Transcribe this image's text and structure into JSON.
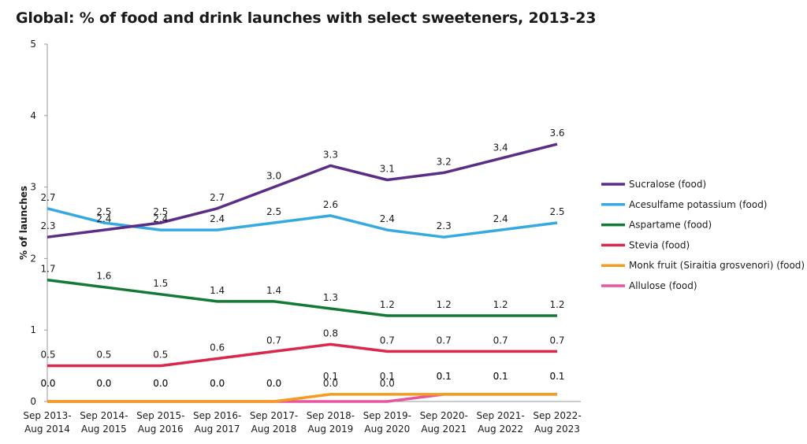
{
  "title": "Global: % of food and drink launches with select sweeteners, 2013-23",
  "chart_data": {
    "type": "line",
    "title": "Global: % of food and drink launches with select sweeteners, 2013-23",
    "ylabel": "% of launches",
    "xlabel": "",
    "ylim": [
      0,
      5
    ],
    "yticks": [
      0,
      1,
      2,
      3,
      4,
      5
    ],
    "grid": false,
    "legend_position": "right",
    "categories": [
      [
        "Sep 2013-",
        "Aug 2014"
      ],
      [
        "Sep 2014-",
        "Aug 2015"
      ],
      [
        "Sep 2015-",
        "Aug 2016"
      ],
      [
        "Sep 2016-",
        "Aug 2017"
      ],
      [
        "Sep 2017-",
        "Aug 2018"
      ],
      [
        "Sep 2018-",
        "Aug 2019"
      ],
      [
        "Sep 2019-",
        "Aug 2020"
      ],
      [
        "Sep 2020-",
        "Aug 2021"
      ],
      [
        "Sep 2021-",
        "Aug 2022"
      ],
      [
        "Sep 2022-",
        "Aug 2023"
      ]
    ],
    "series": [
      {
        "name": "Sucralose (food)",
        "color": "#5b2d86",
        "values": [
          2.3,
          2.4,
          2.5,
          2.7,
          3.0,
          3.3,
          3.1,
          3.2,
          3.4,
          3.6
        ],
        "labels": [
          "2.3",
          "2.4",
          "2.5",
          "2.7",
          "3.0",
          "3.3",
          "3.1",
          "3.2",
          "3.4",
          "3.6"
        ]
      },
      {
        "name": "Acesulfame potassium (food)",
        "color": "#36a9e1",
        "values": [
          2.7,
          2.5,
          2.4,
          2.4,
          2.5,
          2.6,
          2.4,
          2.3,
          2.4,
          2.5
        ],
        "labels": [
          "2.7",
          "2.5",
          "2.4",
          "2.4",
          "2.5",
          "2.6",
          "2.4",
          "2.3",
          "2.4",
          "2.5"
        ]
      },
      {
        "name": "Aspartame (food)",
        "color": "#137a36",
        "values": [
          1.7,
          1.6,
          1.5,
          1.4,
          1.4,
          1.3,
          1.2,
          1.2,
          1.2,
          1.2
        ],
        "labels": [
          "1.7",
          "1.6",
          "1.5",
          "1.4",
          "1.4",
          "1.3",
          "1.2",
          "1.2",
          "1.2",
          "1.2"
        ]
      },
      {
        "name": "Stevia (food)",
        "color": "#d9284b",
        "values": [
          0.5,
          0.5,
          0.5,
          0.6,
          0.7,
          0.8,
          0.7,
          0.7,
          0.7,
          0.7
        ],
        "labels": [
          "0.5",
          "0.5",
          "0.5",
          "0.6",
          "0.7",
          "0.8",
          "0.7",
          "0.7",
          "0.7",
          "0.7"
        ]
      },
      {
        "name": "Monk fruit (Siraitia grosvenori) (food)",
        "color": "#f39c1f",
        "values": [
          0.0,
          0.0,
          0.0,
          0.0,
          0.0,
          0.1,
          0.1,
          0.1,
          0.1,
          0.1
        ],
        "labels": [
          "0.0",
          "0.0",
          "0.0",
          "0.0",
          "0.0",
          "0.1",
          "0.1",
          "0.1",
          "0.1",
          "0.1"
        ]
      },
      {
        "name": "Allulose (food)",
        "color": "#e8559f",
        "values": [
          0.0,
          0.0,
          0.0,
          0.0,
          0.0,
          0.0,
          0.0,
          0.1,
          0.1,
          0.1
        ],
        "labels": [
          "0.0",
          "0.0",
          "0.0",
          "0.0",
          "0.0",
          "0.0",
          "0.0",
          "0.1",
          "0.1",
          "0.1"
        ]
      }
    ]
  }
}
